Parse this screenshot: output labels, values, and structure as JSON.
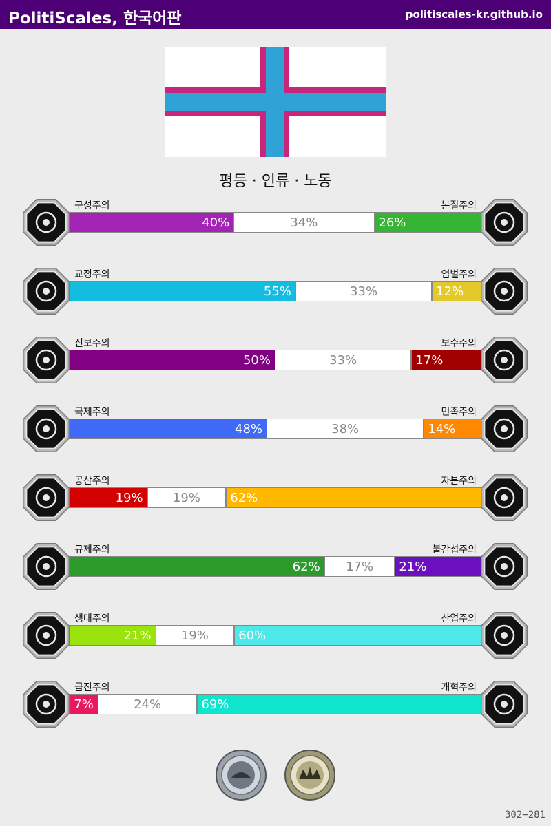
{
  "header": {
    "title": "PolitiScales, 한국어판",
    "url": "politiscales-kr.github.io"
  },
  "flag": {
    "background": "#ffffff",
    "cross_outer": "#c8267a",
    "cross_inner": "#2fa3d6"
  },
  "ideology_title": "평등 · 인류 · 노동",
  "axes": [
    {
      "left_label": "구성주의",
      "right_label": "본질주의",
      "left_value": "40%",
      "middle_value": "34%",
      "right_value": "26%",
      "left_pct": 40,
      "middle_pct": 34,
      "right_pct": 26,
      "left_color": "#a323b5",
      "right_color": "#36b534",
      "left_icon": "eye-icon",
      "right_icon": "flower-icon"
    },
    {
      "left_label": "교정주의",
      "right_label": "엄벌주의",
      "left_value": "55%",
      "middle_value": "33%",
      "right_value": "12%",
      "left_pct": 55,
      "middle_pct": 33,
      "right_pct": 12,
      "left_color": "#14bce0",
      "right_color": "#e4c92a",
      "left_icon": "handshake-icon",
      "right_icon": "prison-bars-icon"
    },
    {
      "left_label": "진보주의",
      "right_label": "보수주의",
      "left_value": "50%",
      "middle_value": "33%",
      "right_value": "17%",
      "left_pct": 50,
      "middle_pct": 33,
      "right_pct": 17,
      "left_color": "#810083",
      "right_color": "#a00000",
      "left_icon": "comet-icon",
      "right_icon": "quill-pen-icon"
    },
    {
      "left_label": "국제주의",
      "right_label": "민족주의",
      "left_value": "48%",
      "middle_value": "38%",
      "right_value": "14%",
      "left_pct": 48,
      "middle_pct": 38,
      "right_pct": 14,
      "left_color": "#3f6af7",
      "right_color": "#ff8800",
      "left_icon": "globe-icon",
      "right_icon": "flag-icon"
    },
    {
      "left_label": "공산주의",
      "right_label": "자본주의",
      "left_value": "19%",
      "middle_value": "19%",
      "right_value": "62%",
      "left_pct": 19,
      "middle_pct": 19,
      "right_pct": 62,
      "left_color": "#d20000",
      "right_color": "#ffb700",
      "left_icon": "hammer-sickle-icon",
      "right_icon": "money-bag-icon"
    },
    {
      "left_label": "규제주의",
      "right_label": "불간섭주의",
      "left_value": "62%",
      "middle_value": "17%",
      "right_value": "21%",
      "left_pct": 62,
      "middle_pct": 17,
      "right_pct": 21,
      "left_color": "#2c9b2c",
      "right_color": "#6c0fbf",
      "left_icon": "ruler-icon",
      "right_icon": "butterfly-icon"
    },
    {
      "left_label": "생태주의",
      "right_label": "산업주의",
      "left_value": "21%",
      "middle_value": "19%",
      "right_value": "60%",
      "left_pct": 21,
      "middle_pct": 19,
      "right_pct": 60,
      "left_color": "#9be30d",
      "right_color": "#4de8e8",
      "left_icon": "sprout-icon",
      "right_icon": "gear-icon"
    },
    {
      "left_label": "급진주의",
      "right_label": "개혁주의",
      "left_value": "7%",
      "middle_value": "24%",
      "right_value": "69%",
      "left_pct": 7,
      "middle_pct": 24,
      "right_pct": 69,
      "left_color": "#e9195f",
      "right_color": "#0fe5cd",
      "left_icon": "fist-icon",
      "right_icon": "ballot-box-icon"
    }
  ],
  "medals": [
    {
      "icon": "silver-medal-icon"
    },
    {
      "icon": "gold-medal-icon"
    }
  ],
  "footer_code": "302−281"
}
